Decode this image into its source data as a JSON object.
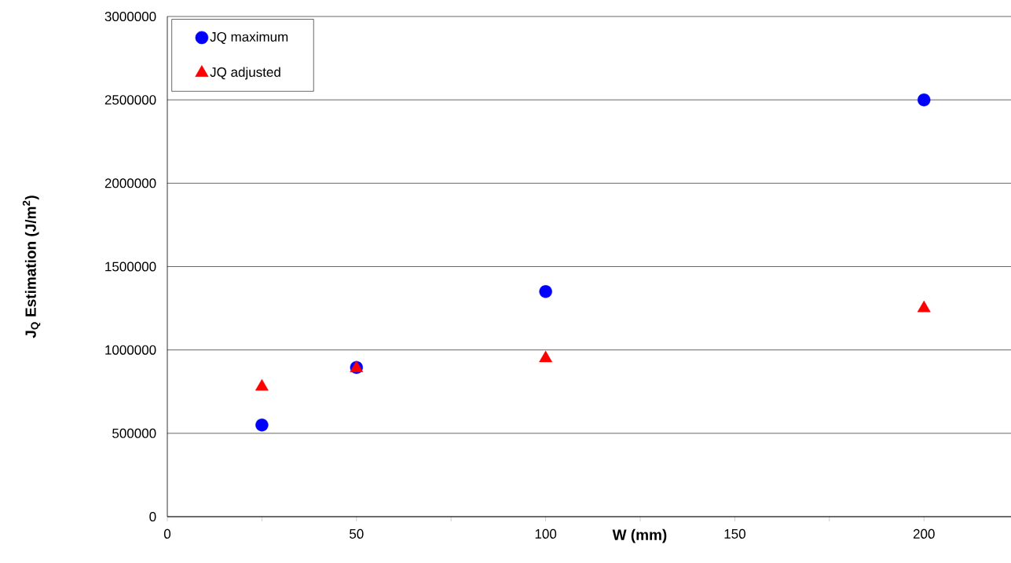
{
  "chart_data": {
    "type": "scatter",
    "xlabel": "W (mm)",
    "ylabel": "J$_{Q}$ Estimation (J/m$^{2}$)",
    "xlim": [
      0,
      223
    ],
    "xticks": [
      0,
      50,
      100,
      150,
      200
    ],
    "ylim": [
      0,
      3000000
    ],
    "yticks": [
      0,
      500000,
      1000000,
      1500000,
      2000000,
      2500000,
      3000000
    ],
    "grid": "y",
    "legend": "top left",
    "series": [
      {
        "name": "JQ maximum",
        "color": "#0000ff",
        "marker": "circle",
        "x": [
          25,
          50,
          100,
          200
        ],
        "values": [
          550000,
          895000,
          1350000,
          2500000
        ]
      },
      {
        "name": "JQ adjusted",
        "color": "#ff0000",
        "marker": "triangle",
        "x": [
          25,
          50,
          100,
          200
        ],
        "values": [
          780000,
          890000,
          950000,
          1250000
        ]
      }
    ]
  }
}
